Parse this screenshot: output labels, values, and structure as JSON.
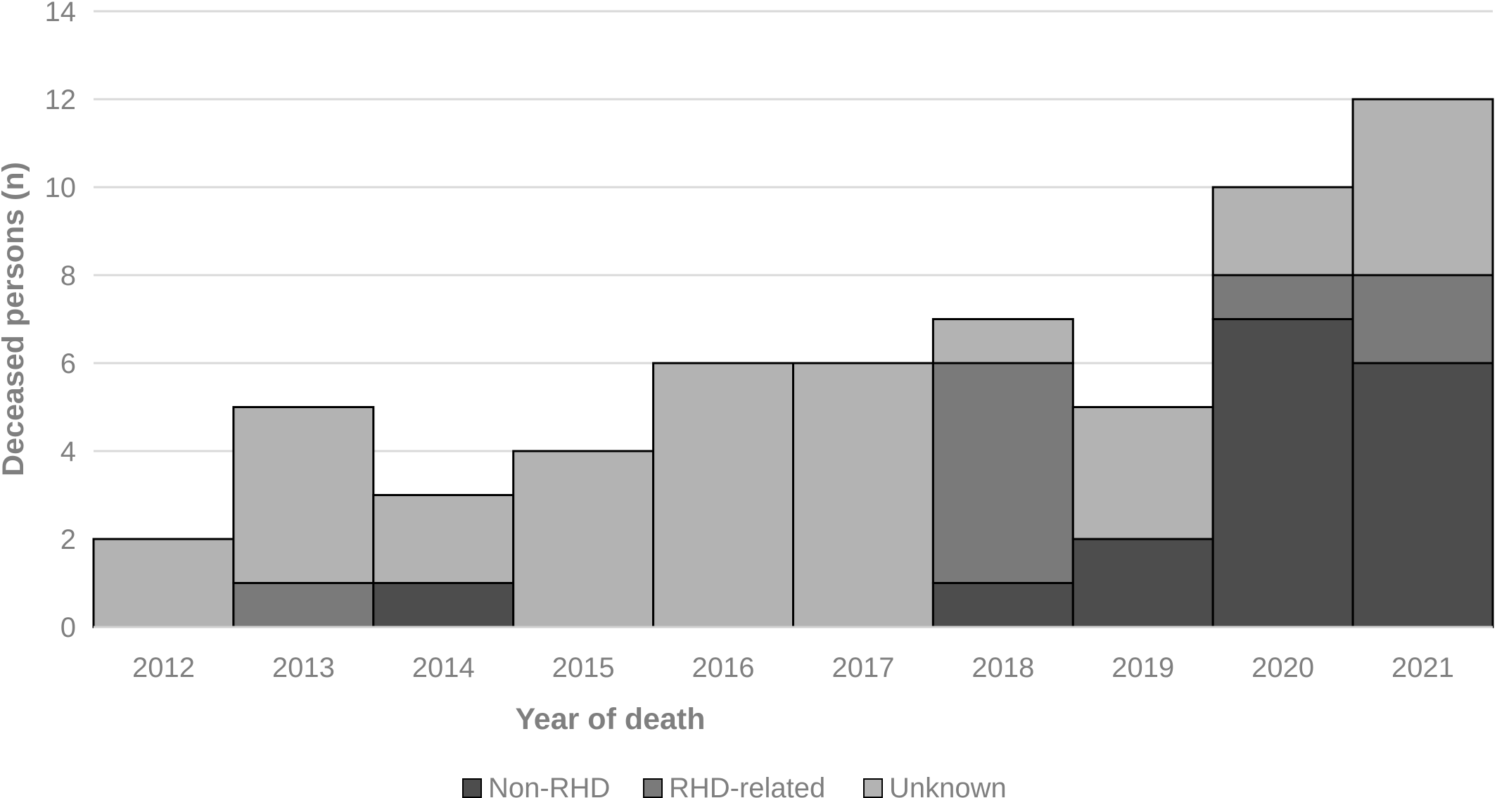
{
  "chart_data": {
    "type": "bar",
    "stacked": true,
    "categories": [
      "2012",
      "2013",
      "2014",
      "2015",
      "2016",
      "2017",
      "2018",
      "2019",
      "2020",
      "2021"
    ],
    "series": [
      {
        "name": "Non-RHD",
        "color": "#4d4d4d",
        "values": [
          0,
          0,
          1,
          0,
          0,
          0,
          1,
          2,
          7,
          6
        ]
      },
      {
        "name": "RHD-related",
        "color": "#7a7a7a",
        "values": [
          0,
          1,
          0,
          0,
          0,
          0,
          5,
          0,
          1,
          2
        ]
      },
      {
        "name": "Unknown",
        "color": "#b3b3b3",
        "values": [
          2,
          4,
          2,
          4,
          6,
          6,
          1,
          3,
          2,
          4
        ]
      }
    ],
    "xlabel": "Year of death",
    "ylabel": "Deceased persons (n)",
    "ylim": [
      0,
      14
    ],
    "yticks": [
      0,
      2,
      4,
      6,
      8,
      10,
      12,
      14
    ],
    "grid": true,
    "legend_position": "bottom"
  }
}
